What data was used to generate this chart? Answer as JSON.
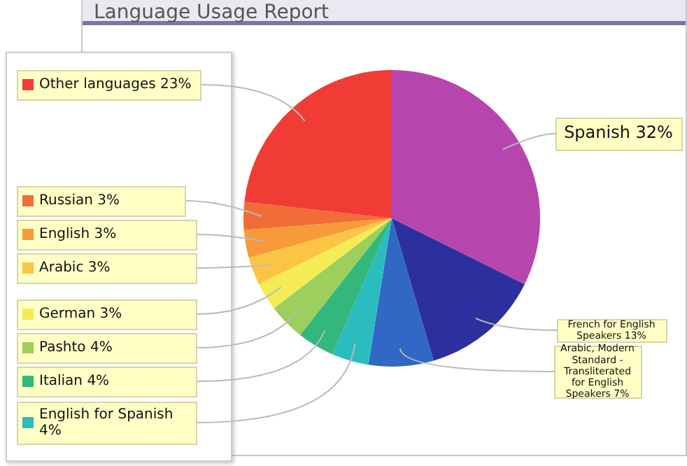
{
  "chart_data": {
    "type": "pie",
    "title": "Language Usage Report",
    "categories": [
      "Spanish",
      "French for English Speakers",
      "Arabic, Modern Standard - Transliterated for English Speakers",
      "English for Spanish",
      "Italian",
      "Pashto",
      "German",
      "Arabic",
      "English",
      "Russian",
      "Other languages"
    ],
    "values": [
      32,
      13,
      7,
      4,
      4,
      4,
      3,
      3,
      3,
      3,
      23
    ],
    "value_labels": [
      "32%",
      "13%",
      "7%",
      "4%",
      "4%",
      "4%",
      "3%",
      "3%",
      "3%",
      "3%",
      "23%"
    ],
    "colors": [
      "#b646ad",
      "#2c309e",
      "#3068c4",
      "#2bbcc0",
      "#33b77a",
      "#9ccf5c",
      "#f5ec55",
      "#fbc444",
      "#f79a3a",
      "#f26c38",
      "#f03c35"
    ],
    "legend": "left"
  }
}
